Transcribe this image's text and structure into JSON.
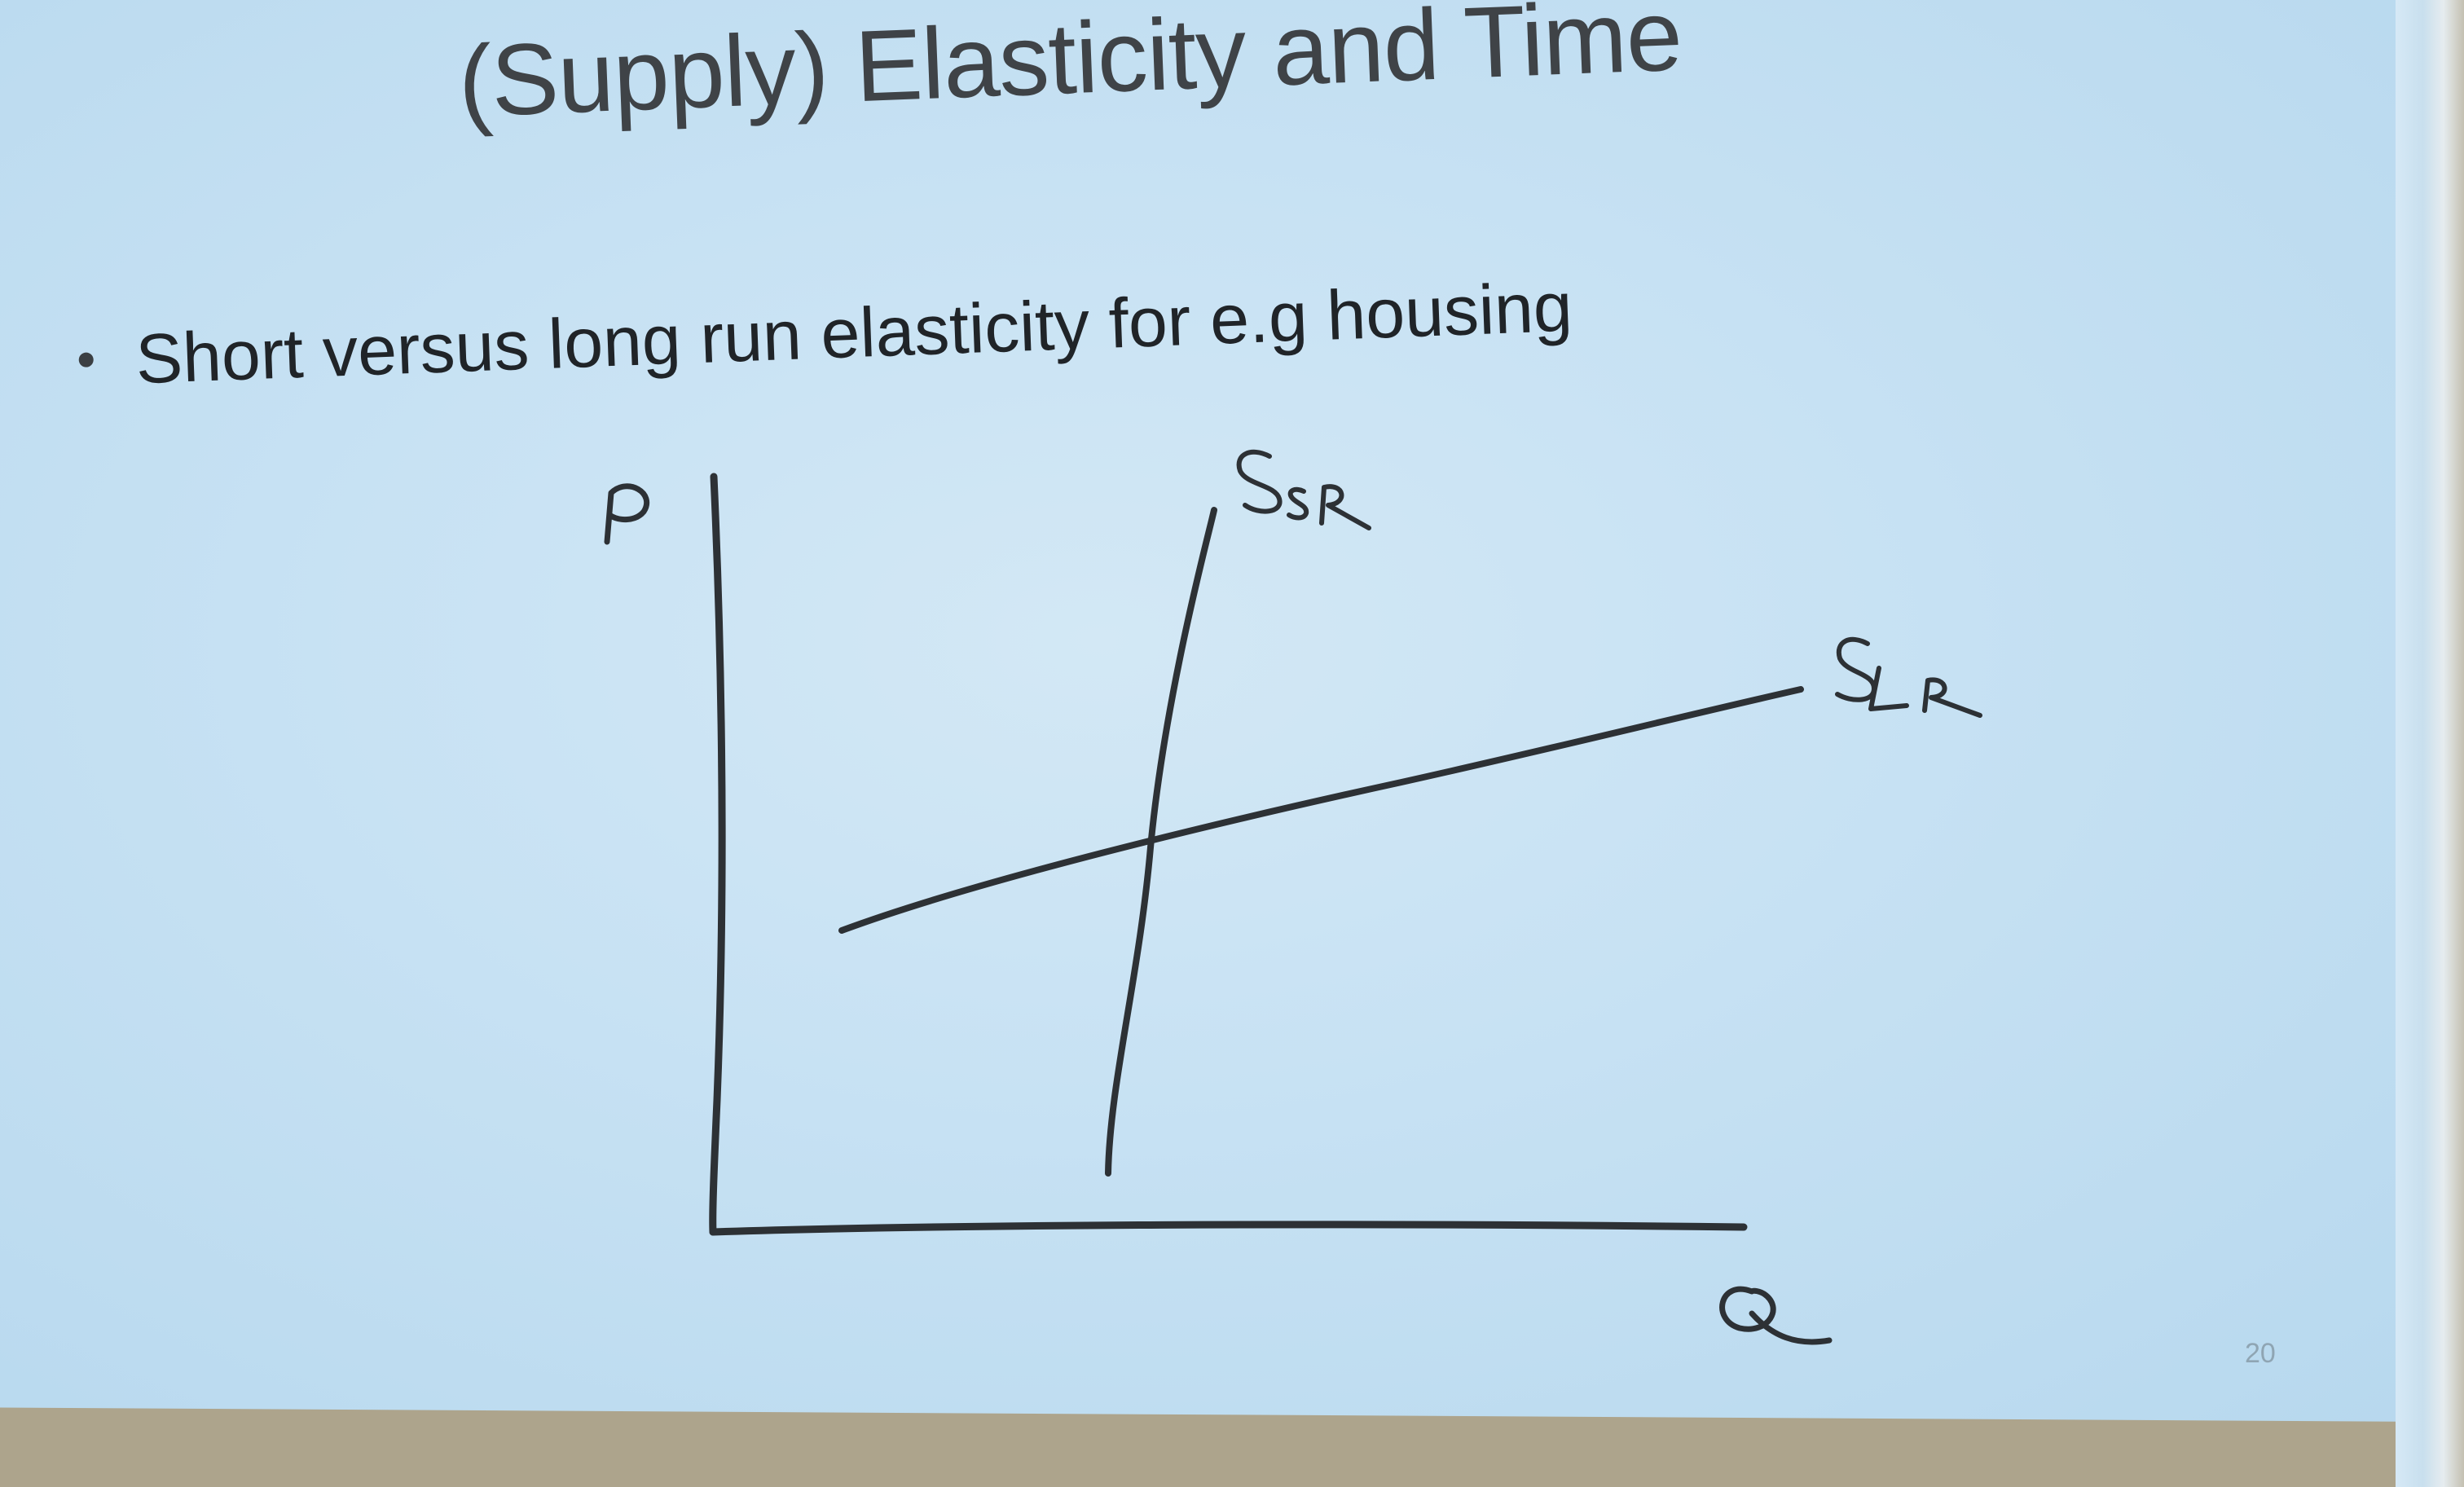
{
  "slide": {
    "title": "(Supply) Elasticity and Time",
    "bullet": "Short versus long run elasticity for e.g housing",
    "page_number": "20"
  },
  "sketch": {
    "y_axis_label": "P",
    "x_axis_label": "Q",
    "short_run_curve_label": "S",
    "short_run_curve_subscript": "SR",
    "long_run_curve_label": "S",
    "long_run_curve_subscript": "LR",
    "ink_color": "#2d3135"
  },
  "colors": {
    "screen_background": "#c6e1f3",
    "title_text": "#3f4347",
    "body_text": "#202428"
  }
}
